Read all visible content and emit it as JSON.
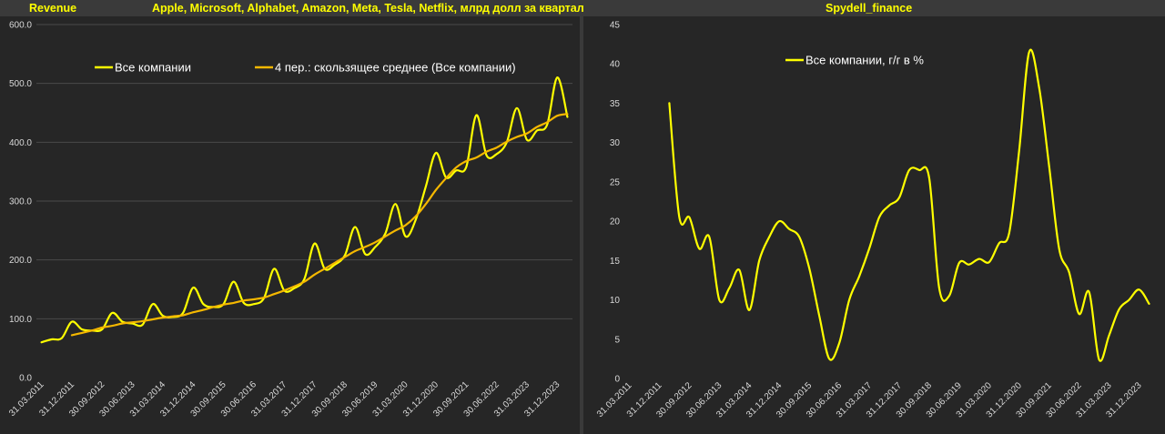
{
  "header": {
    "left_label": "Revenue",
    "center_title": "Apple, Microsoft, Alphabet, Amazon, Meta, Tesla, Netflix, млрд долл за квартал",
    "right_title": "Spydell_finance"
  },
  "colors": {
    "background": "#262626",
    "frame": "#3a3a3a",
    "title": "#ffff00",
    "series_main": "#ffff00",
    "series_ma": "#f5b800",
    "grid": "#4a4a4a"
  },
  "chart_data": [
    {
      "type": "line",
      "title": "Apple, Microsoft, Alphabet, Amazon, Meta, Tesla, Netflix, млрд долл за квартал",
      "ylim": [
        0,
        600
      ],
      "y_ticks": [
        "0.0",
        "100.0",
        "200.0",
        "300.0",
        "400.0",
        "500.0",
        "600.0"
      ],
      "x_tick_labels": [
        "31.03.2011",
        "31.12.2011",
        "30.09.2012",
        "30.06.2013",
        "31.03.2014",
        "31.12.2014",
        "30.09.2015",
        "30.06.2016",
        "31.03.2017",
        "31.12.2017",
        "30.09.2018",
        "30.06.2019",
        "31.03.2020",
        "31.12.2020",
        "30.09.2021",
        "30.06.2022",
        "31.03.2023",
        "31.12.2023"
      ],
      "grid": true,
      "legend_position": "top",
      "series": [
        {
          "name": "Все компании",
          "values": [
            60,
            65,
            67,
            95,
            82,
            80,
            82,
            110,
            95,
            92,
            90,
            125,
            105,
            103,
            110,
            153,
            125,
            120,
            125,
            163,
            127,
            125,
            135,
            185,
            148,
            152,
            168,
            228,
            185,
            192,
            208,
            256,
            210,
            222,
            245,
            295,
            240,
            268,
            325,
            382,
            340,
            352,
            358,
            446,
            378,
            380,
            400,
            458,
            404,
            420,
            430,
            510,
            443
          ]
        },
        {
          "name": "4 пер.: скользящее среднее (Все компании)",
          "values": [
            null,
            null,
            null,
            72,
            76,
            80,
            85,
            88,
            92,
            94,
            96,
            99,
            102,
            104,
            106,
            111,
            115,
            120,
            124,
            127,
            131,
            133,
            136,
            142,
            148,
            155,
            163,
            175,
            185,
            195,
            205,
            215,
            222,
            230,
            240,
            250,
            259,
            274,
            295,
            319,
            339,
            357,
            368,
            374,
            384,
            391,
            401,
            409,
            415,
            426,
            434,
            445,
            448
          ]
        }
      ]
    },
    {
      "type": "line",
      "title": "",
      "ylim": [
        0,
        45
      ],
      "y_ticks": [
        "0",
        "5",
        "10",
        "15",
        "20",
        "25",
        "30",
        "35",
        "40",
        "45"
      ],
      "x_tick_labels": [
        "31.03.2011",
        "31.12.2011",
        "30.09.2012",
        "30.06.2013",
        "31.03.2014",
        "31.12.2014",
        "30.09.2015",
        "30.06.2016",
        "31.03.2017",
        "31.12.2017",
        "30.09.2018",
        "30.06.2019",
        "31.03.2020",
        "31.12.2020",
        "30.09.2021",
        "30.06.2022",
        "31.03.2023",
        "31.12.2023"
      ],
      "grid": false,
      "legend_position": "top",
      "series": [
        {
          "name": "Все компании, г/г в %",
          "values": [
            null,
            null,
            null,
            null,
            35,
            20.5,
            20.5,
            16.5,
            18,
            10,
            11.5,
            13.8,
            8.7,
            15,
            18,
            20,
            19,
            18,
            14,
            8,
            2.5,
            4.5,
            10,
            13,
            16.5,
            20.5,
            22,
            23,
            26.5,
            26.5,
            25.5,
            11.5,
            10.5,
            14.7,
            14.5,
            15.2,
            14.8,
            17.2,
            18.5,
            29,
            41.5,
            37,
            27,
            16.5,
            13.5,
            8.2,
            11,
            2.4,
            5.5,
            8.8,
            10,
            11.3,
            9.5
          ]
        }
      ]
    }
  ]
}
